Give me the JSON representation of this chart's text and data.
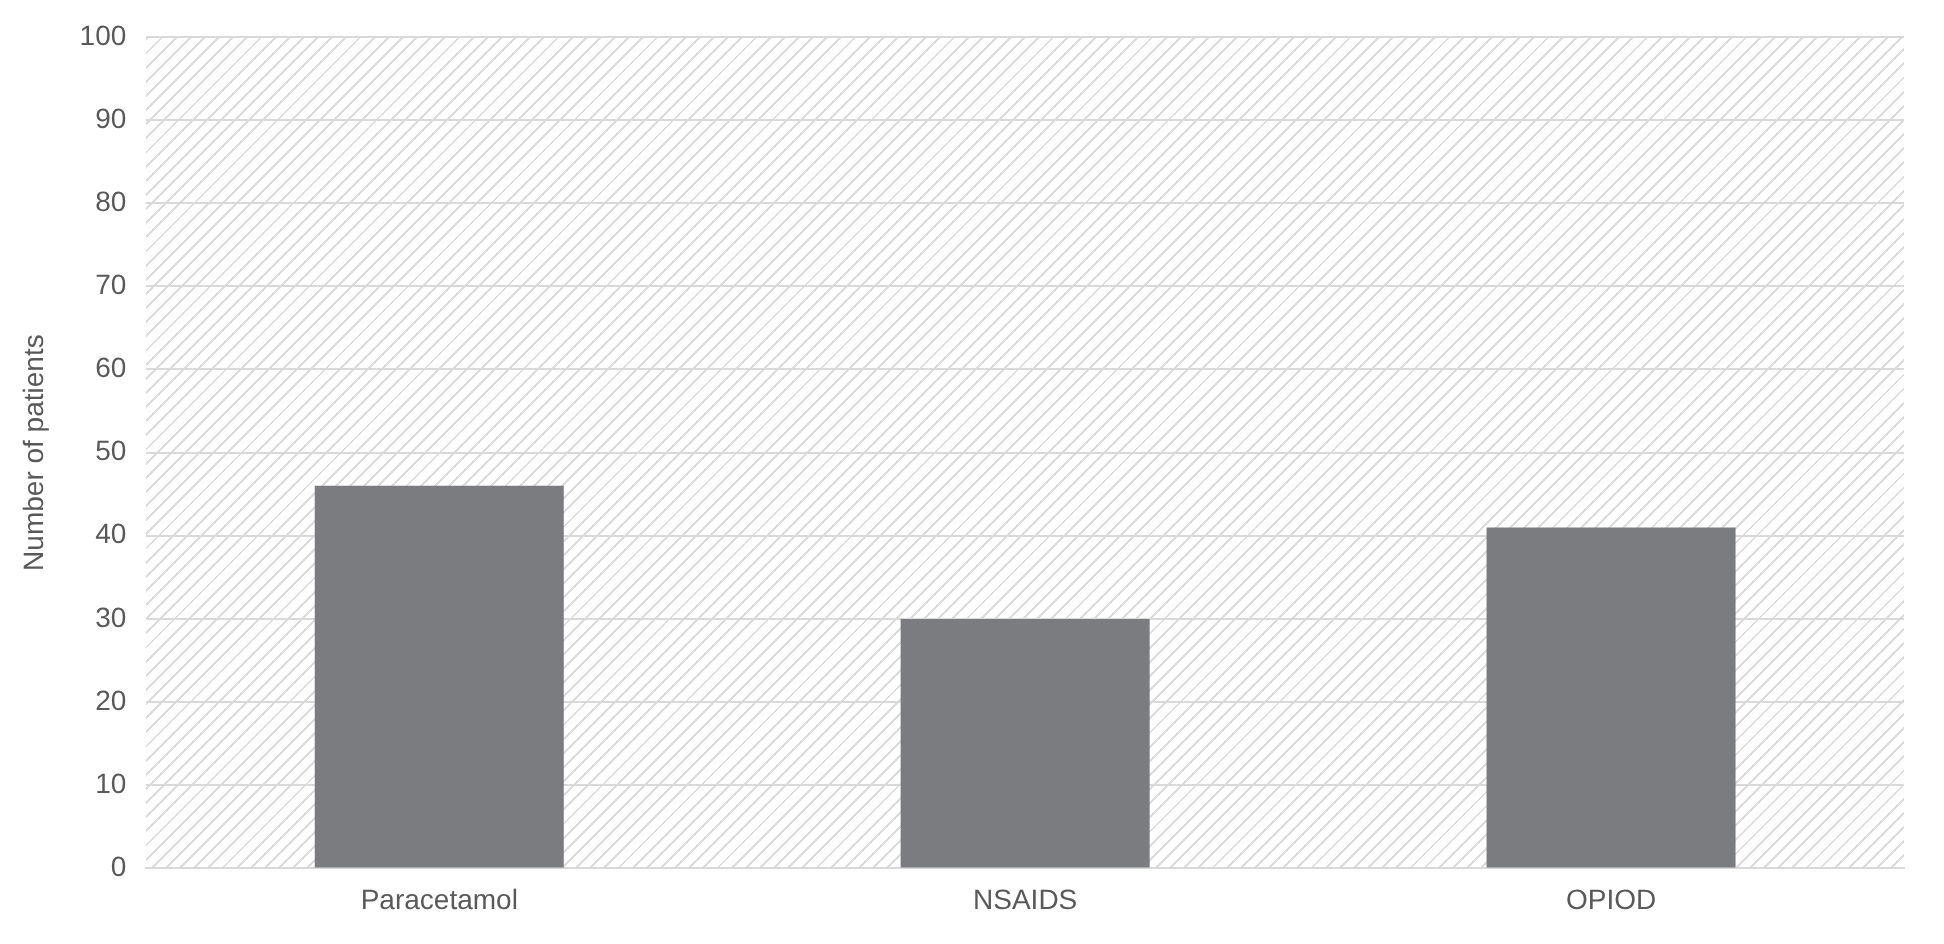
{
  "chart_data": {
    "type": "bar",
    "ylabel": "Number of patients",
    "categories": [
      "Paracetamol",
      "NSAIDS",
      "OPIOD"
    ],
    "values": [
      46,
      30,
      41
    ],
    "color": "#7b7c80",
    "ylim": [
      0,
      100
    ],
    "yticks": [
      0,
      10,
      20,
      30,
      40,
      50,
      60,
      70,
      80,
      90,
      100
    ],
    "grid": "y"
  }
}
